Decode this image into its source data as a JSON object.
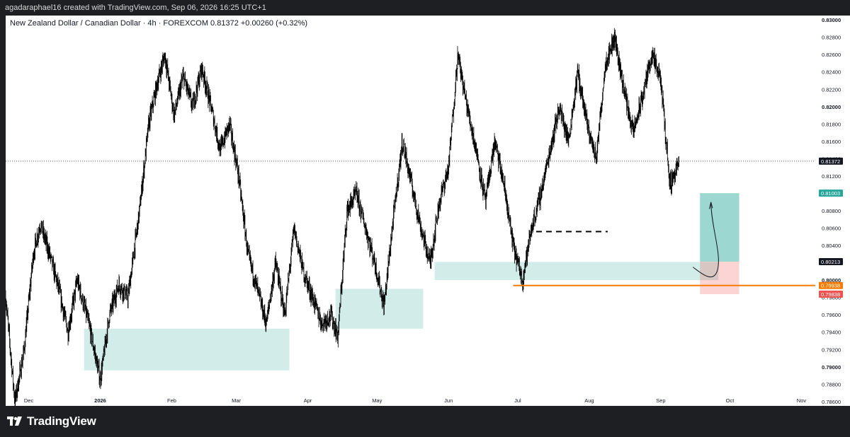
{
  "header": {
    "attribution": "agadaraphael16 created with TradingView.com, Sep 06, 2026 16:25 UTC+1"
  },
  "chart_title": "New Zealand Dollar / Canadian Dollar · 4h · FOREXCOM  0.81372  +0.00260 (+0.32%)",
  "footer": {
    "logo_text": "TradingView"
  },
  "colors": {
    "up": "#26a69a",
    "down": "#ef5350",
    "price_line": "#131722",
    "support": "#f57c00"
  },
  "chart_data": {
    "type": "candlestick",
    "instrument": "NZDCAD",
    "timeframe": "4h",
    "ylim": [
      0.7855,
      0.8305
    ],
    "y_ticks": [
      0.786,
      0.788,
      0.79,
      0.792,
      0.794,
      0.796,
      0.798,
      0.8,
      0.802,
      0.804,
      0.806,
      0.808,
      0.81,
      0.812,
      0.814,
      0.816,
      0.818,
      0.82,
      0.822,
      0.824,
      0.826,
      0.828,
      0.83
    ],
    "y_tick_labels": [
      "0.78600",
      "0.78800",
      "0.79000",
      "0.79200",
      "0.79400",
      "0.79600",
      "0.79800",
      "0.80000",
      "0.80200",
      "0.80400",
      "0.80600",
      "0.80800",
      "0.81000",
      "0.81200",
      "0.81400",
      "0.81600",
      "0.81800",
      "0.82000",
      "0.82200",
      "0.82400",
      "0.82600",
      "0.82800",
      "0.83000"
    ],
    "x_start": "2025-11-21",
    "x_end": "2026-11-07",
    "x_ticks": [
      {
        "date": "2025-12-01",
        "label": "Dec"
      },
      {
        "date": "2026-01-01",
        "label": "2026"
      },
      {
        "date": "2026-02-01",
        "label": "Feb"
      },
      {
        "date": "2026-03-01",
        "label": "Mar"
      },
      {
        "date": "2026-04-01",
        "label": "Apr"
      },
      {
        "date": "2026-05-01",
        "label": "May"
      },
      {
        "date": "2026-06-01",
        "label": "Jun"
      },
      {
        "date": "2026-07-01",
        "label": "Jul"
      },
      {
        "date": "2026-08-01",
        "label": "Aug"
      },
      {
        "date": "2026-09-01",
        "label": "Sep"
      },
      {
        "date": "2026-10-01",
        "label": "Oct"
      },
      {
        "date": "2026-11-01",
        "label": "Nov"
      }
    ],
    "price_path": [
      [
        "2025-11-21",
        0.798
      ],
      [
        "2025-11-25",
        0.786
      ],
      [
        "2025-11-29",
        0.792
      ],
      [
        "2025-12-03",
        0.803
      ],
      [
        "2025-12-06",
        0.8065
      ],
      [
        "2025-12-10",
        0.803
      ],
      [
        "2025-12-14",
        0.799
      ],
      [
        "2025-12-18",
        0.794
      ],
      [
        "2025-12-22",
        0.8
      ],
      [
        "2025-12-27",
        0.795
      ],
      [
        "2026-01-01",
        0.7885
      ],
      [
        "2026-01-05",
        0.796
      ],
      [
        "2026-01-09",
        0.7995
      ],
      [
        "2026-01-13",
        0.798
      ],
      [
        "2026-01-18",
        0.808
      ],
      [
        "2026-01-22",
        0.818
      ],
      [
        "2026-01-26",
        0.823
      ],
      [
        "2026-01-29",
        0.826
      ],
      [
        "2026-02-02",
        0.819
      ],
      [
        "2026-02-06",
        0.8235
      ],
      [
        "2026-02-10",
        0.82
      ],
      [
        "2026-02-14",
        0.8245
      ],
      [
        "2026-02-18",
        0.82
      ],
      [
        "2026-02-22",
        0.815
      ],
      [
        "2026-02-26",
        0.818
      ],
      [
        "2026-03-02",
        0.812
      ],
      [
        "2026-03-06",
        0.803
      ],
      [
        "2026-03-10",
        0.799
      ],
      [
        "2026-03-14",
        0.795
      ],
      [
        "2026-03-18",
        0.802
      ],
      [
        "2026-03-22",
        0.796
      ],
      [
        "2026-03-26",
        0.806
      ],
      [
        "2026-03-30",
        0.801
      ],
      [
        "2026-04-03",
        0.798
      ],
      [
        "2026-04-07",
        0.795
      ],
      [
        "2026-04-11",
        0.796
      ],
      [
        "2026-04-14",
        0.7935
      ],
      [
        "2026-04-18",
        0.808
      ],
      [
        "2026-04-22",
        0.81
      ],
      [
        "2026-04-26",
        0.806
      ],
      [
        "2026-04-30",
        0.802
      ],
      [
        "2026-05-04",
        0.797
      ],
      [
        "2026-05-08",
        0.807
      ],
      [
        "2026-05-12",
        0.816
      ],
      [
        "2026-05-16",
        0.811
      ],
      [
        "2026-05-20",
        0.806
      ],
      [
        "2026-05-24",
        0.802
      ],
      [
        "2026-05-28",
        0.809
      ],
      [
        "2026-06-01",
        0.813
      ],
      [
        "2026-06-05",
        0.826
      ],
      [
        "2026-06-09",
        0.82
      ],
      [
        "2026-06-13",
        0.815
      ],
      [
        "2026-06-17",
        0.809
      ],
      [
        "2026-06-21",
        0.816
      ],
      [
        "2026-06-25",
        0.811
      ],
      [
        "2026-06-29",
        0.804
      ],
      [
        "2026-07-03",
        0.8
      ],
      [
        "2026-07-07",
        0.806
      ],
      [
        "2026-07-11",
        0.81
      ],
      [
        "2026-07-15",
        0.815
      ],
      [
        "2026-07-19",
        0.82
      ],
      [
        "2026-07-23",
        0.816
      ],
      [
        "2026-07-27",
        0.824
      ],
      [
        "2026-07-31",
        0.818
      ],
      [
        "2026-08-04",
        0.814
      ],
      [
        "2026-08-08",
        0.825
      ],
      [
        "2026-08-12",
        0.828
      ],
      [
        "2026-08-16",
        0.822
      ],
      [
        "2026-08-20",
        0.817
      ],
      [
        "2026-08-24",
        0.821
      ],
      [
        "2026-08-28",
        0.826
      ],
      [
        "2026-09-01",
        0.823
      ],
      [
        "2026-09-05",
        0.811
      ],
      [
        "2026-09-09",
        0.8137
      ]
    ],
    "last_price": {
      "value": 0.81372,
      "label": "0.81372"
    },
    "price_labels": [
      {
        "value": 0.81003,
        "label": "0.81003",
        "color": "#26a69a"
      },
      {
        "value": 0.80213,
        "label": "0.80213",
        "color": "#131722"
      },
      {
        "value": 0.79938,
        "label": "0.79938",
        "color": "#f57c00"
      },
      {
        "value": 0.79838,
        "label": "0.79838",
        "color": "#ef5350"
      }
    ],
    "zones": [
      {
        "x1": "2025-12-25",
        "x2": "2026-03-24",
        "y1": 0.7896,
        "y2": 0.7944
      },
      {
        "x1": "2026-04-13",
        "x2": "2026-05-21",
        "y1": 0.7944,
        "y2": 0.799
      },
      {
        "x1": "2026-05-26",
        "x2": "2026-09-26",
        "y1": 0.8,
        "y2": 0.8021
      }
    ],
    "position": {
      "x1": "2026-09-18",
      "x2": "2026-10-05",
      "entry": 0.80213,
      "target": 0.81003,
      "stop": 0.79838
    },
    "support_line": {
      "x1": "2026-06-29",
      "x2": "2026-11-07",
      "y": 0.79938
    },
    "dashed_line": {
      "x1": "2026-07-09",
      "x2": "2026-08-09",
      "y": 0.8056
    }
  }
}
